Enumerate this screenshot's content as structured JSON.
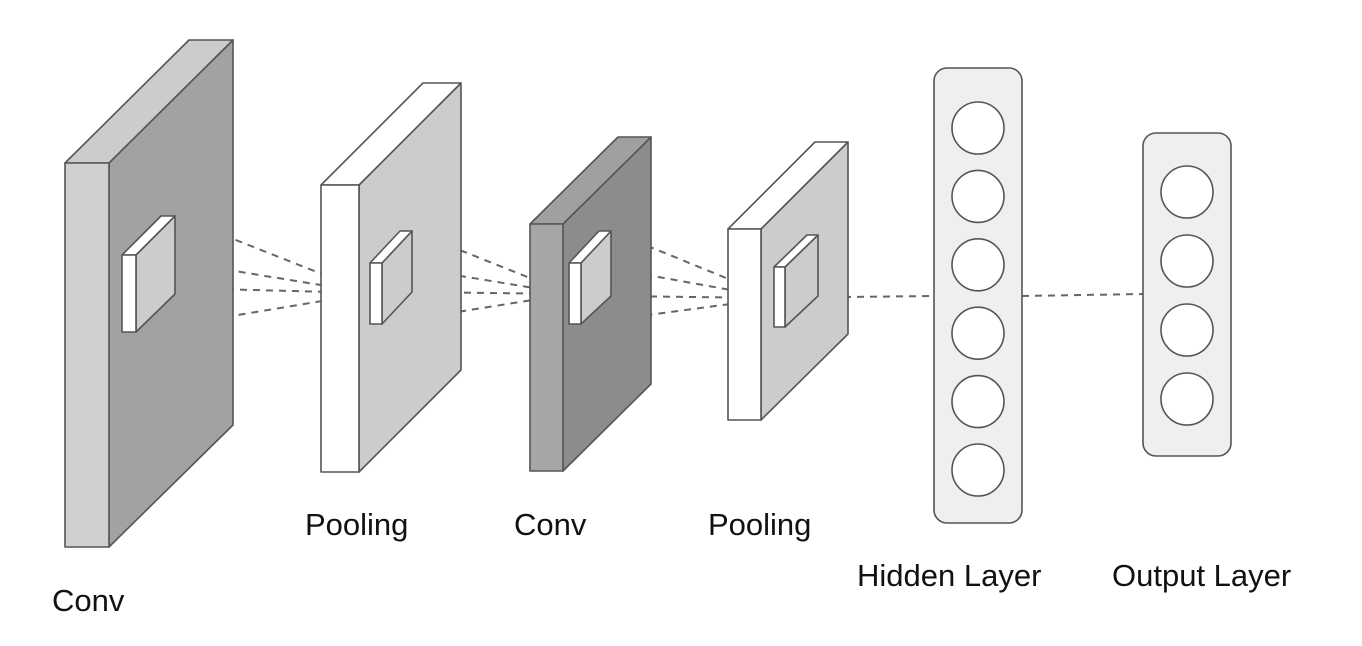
{
  "labels": {
    "conv1": "Conv",
    "pool1": "Pooling",
    "conv2": "Conv",
    "pool2": "Pooling",
    "hidden": "Hidden Layer",
    "output": "Output Layer"
  },
  "layers": {
    "hidden_neurons": 6,
    "output_neurons": 4
  },
  "colors": {
    "stroke": "#555555",
    "conv1_front": "#cfcfcf",
    "conv1_side": "#a2a2a2",
    "conv1_top": "#cccccc",
    "pool_front": "#ffffff",
    "pool_side": "#cccccc",
    "conv2_front": "#a6a6a6",
    "conv2_side": "#8c8c8c",
    "conv2_top": "#a0a0a0",
    "layer_box": "#efefef",
    "dash": "#666666"
  }
}
